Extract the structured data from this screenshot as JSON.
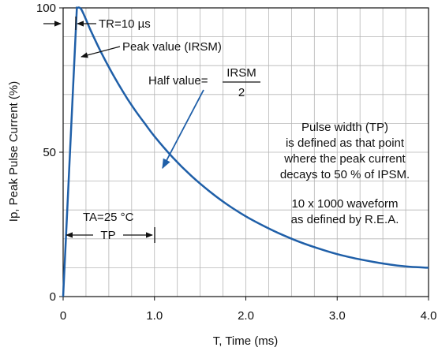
{
  "chart_data": {
    "type": "line",
    "xlabel": "T, Time (ms)",
    "ylabel": "Ip, Peak Pulse Current (%)",
    "xlim": [
      0,
      4.0
    ],
    "ylim": [
      0,
      100
    ],
    "grid": true,
    "x_ticks": [
      "0",
      "1.0",
      "2.0",
      "3.0",
      "4.0"
    ],
    "y_ticks": [
      "0",
      "50",
      "100"
    ],
    "series": [
      {
        "color": "#1f5fa8",
        "x": [
          0,
          0.15,
          0.2,
          0.3,
          0.4,
          0.5,
          0.6,
          0.7,
          0.8,
          0.9,
          1.0,
          1.2,
          1.4,
          1.6,
          1.8,
          2.0,
          2.2,
          2.4,
          2.6,
          2.8,
          3.0,
          3.2,
          3.4,
          3.6,
          3.8,
          4.0
        ],
        "y": [
          0,
          100,
          99.4,
          92.3,
          85.6,
          79.5,
          73.9,
          68.7,
          64,
          59.7,
          55.5,
          48.2,
          41.9,
          36.5,
          31.8,
          27.8,
          24.4,
          21.4,
          18.8,
          16.6,
          14.7,
          13.2,
          12,
          11,
          10.3,
          10
        ]
      }
    ],
    "annotations": {
      "tr": "TR=10 µs",
      "peak": "Peak value (IRSM)",
      "half_prefix": "Half value=",
      "half_num": "IRSM",
      "half_den": "2",
      "note_lines": [
        "Pulse width (TP)",
        "is defined as that point",
        "where the peak current",
        "decays to 50 % of IPSM.",
        "",
        "10 x 1000 waveform",
        "as defined by R.E.A."
      ],
      "ta": "TA=25 °C",
      "tp": "TP"
    }
  }
}
